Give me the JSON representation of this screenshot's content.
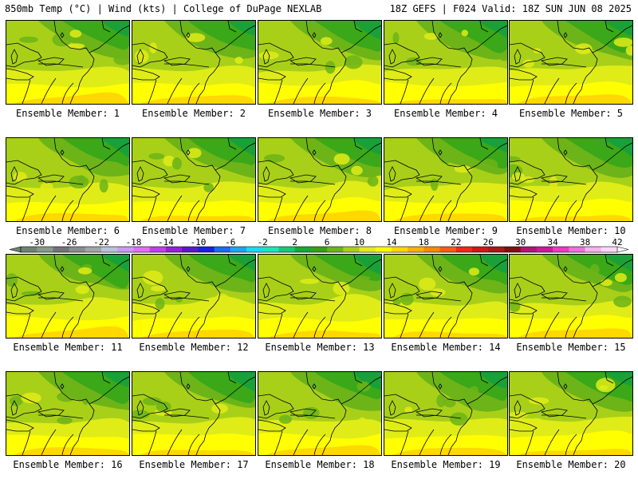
{
  "header": {
    "left": "850mb Temp (°C) | Wind (kts) | College of DuPage NEXLAB",
    "right": "18Z GEFS | F024 Valid: 18Z SUN JUN 08 2025"
  },
  "panels": [
    {
      "label": "Ensemble Member: 1"
    },
    {
      "label": "Ensemble Member: 2"
    },
    {
      "label": "Ensemble Member: 3"
    },
    {
      "label": "Ensemble Member: 4"
    },
    {
      "label": "Ensemble Member: 5"
    },
    {
      "label": "Ensemble Member: 6"
    },
    {
      "label": "Ensemble Member: 7"
    },
    {
      "label": "Ensemble Member: 8"
    },
    {
      "label": "Ensemble Member: 9"
    },
    {
      "label": "Ensemble Member: 10"
    },
    {
      "label": "Ensemble Member: 11"
    },
    {
      "label": "Ensemble Member: 12"
    },
    {
      "label": "Ensemble Member: 13"
    },
    {
      "label": "Ensemble Member: 14"
    },
    {
      "label": "Ensemble Member: 15"
    },
    {
      "label": "Ensemble Member: 16"
    },
    {
      "label": "Ensemble Member: 17"
    },
    {
      "label": "Ensemble Member: 18"
    },
    {
      "label": "Ensemble Member: 19"
    },
    {
      "label": "Ensemble Member: 20"
    }
  ],
  "colorbar": {
    "tick_labels": [
      "-30",
      "-26",
      "-22",
      "-18",
      "-14",
      "-10",
      "-6",
      "-2",
      "2",
      "6",
      "10",
      "14",
      "18",
      "22",
      "26",
      "30",
      "34",
      "38",
      "42"
    ],
    "colors": [
      "#6e8470",
      "#889a8a",
      "#747474",
      "#8c8c8c",
      "#a4a4a4",
      "#b8c4d8",
      "#c89cf0",
      "#e070f0",
      "#c040e8",
      "#9420d8",
      "#5a18c8",
      "#1a20e0",
      "#1a6cf0",
      "#18a8f0",
      "#18dcf0",
      "#18e8b8",
      "#18c878",
      "#18a838",
      "#38a018",
      "#6cb418",
      "#a8d018",
      "#e0ec18",
      "#ffff00",
      "#ffd800",
      "#ffb000",
      "#ff8800",
      "#ff5a18",
      "#f02818",
      "#d01818",
      "#a81818",
      "#801010",
      "#b01870",
      "#d01898",
      "#f038c0",
      "#f070d8",
      "#f4b4ec",
      "#ffd8f8"
    ],
    "arrow_left": "#6e8470",
    "arrow_right": "#ffffff"
  },
  "map_colors": {
    "t6": "#1aa038",
    "t8": "#3aa818",
    "t10": "#6cb418",
    "t12": "#a8d018",
    "t14": "#e0ec18",
    "t16": "#ffff00",
    "t18": "#ffd800"
  }
}
